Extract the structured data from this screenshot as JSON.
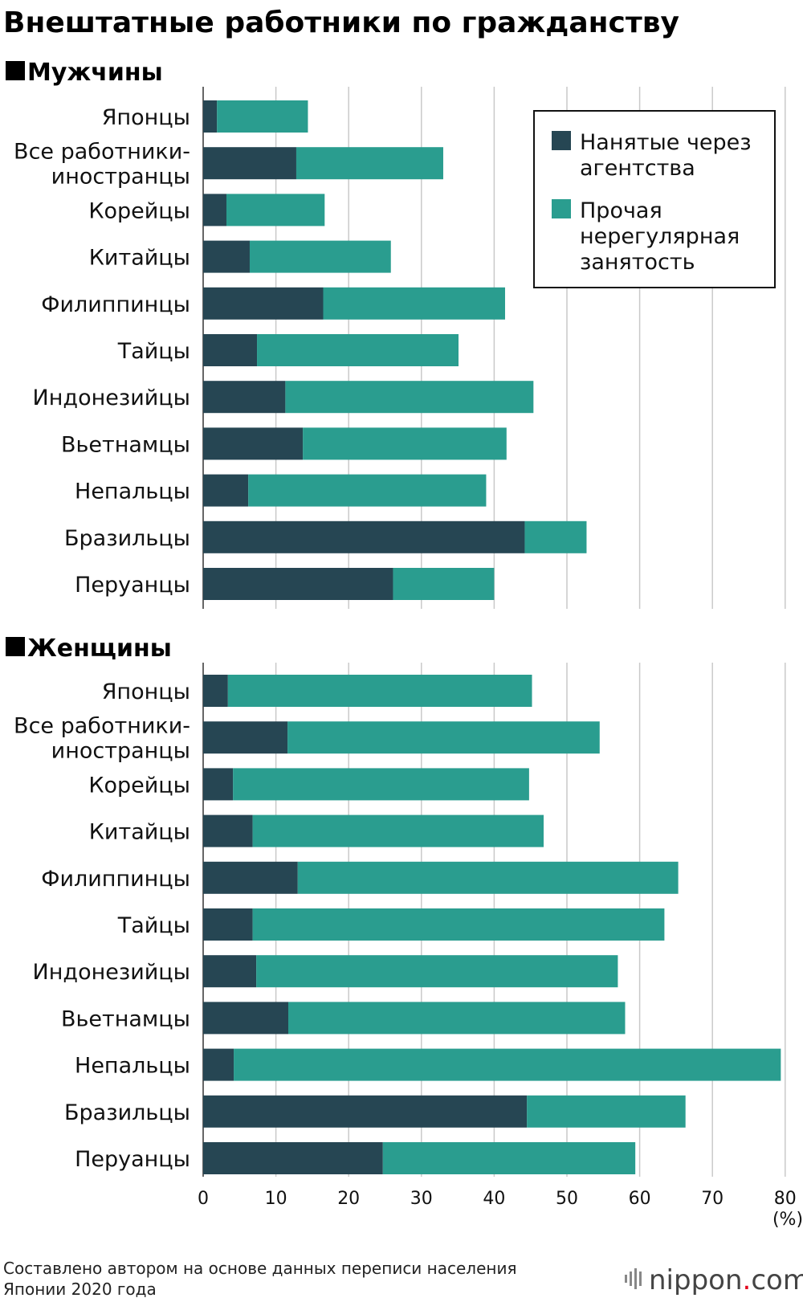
{
  "title": "Внештатные работники по гражданству",
  "colors": {
    "agency": "#264653",
    "other": "#2a9d8f"
  },
  "legend": {
    "agency_lines": [
      "Нанятые через",
      "агентства"
    ],
    "other_lines": [
      "Прочая",
      "нерегулярная",
      "занятость"
    ]
  },
  "axis": {
    "ticks": [
      0,
      10,
      20,
      30,
      40,
      50,
      60,
      70,
      80
    ],
    "unit": "(%)"
  },
  "source_lines": [
    "Составлено автором на основе данных переписи населения",
    "Японии 2020 года"
  ],
  "logo": {
    "text": "nippon",
    "dot": ".",
    "suffix": "com"
  },
  "chart_data": [
    {
      "type": "bar",
      "orientation": "horizontal",
      "stacked": true,
      "title": "Мужчины",
      "categories": [
        "Японцы",
        "Все работники-иностранцы",
        "Корейцы",
        "Китайцы",
        "Филиппинцы",
        "Тайцы",
        "Индонезийцы",
        "Вьетнамцы",
        "Непальцы",
        "Бразильцы",
        "Перуанцы"
      ],
      "category_lines": [
        [
          "Японцы"
        ],
        [
          "Все работники-",
          "иностранцы"
        ],
        [
          "Корейцы"
        ],
        [
          "Китайцы"
        ],
        [
          "Филиппинцы"
        ],
        [
          "Тайцы"
        ],
        [
          "Индонезийцы"
        ],
        [
          "Вьетнамцы"
        ],
        [
          "Непальцы"
        ],
        [
          "Бразильцы"
        ],
        [
          "Перуанцы"
        ]
      ],
      "series": [
        {
          "name": "Нанятые через агентства",
          "values": [
            1.9,
            12.8,
            3.2,
            6.4,
            16.5,
            7.4,
            11.3,
            13.7,
            6.2,
            44.2,
            26.1
          ]
        },
        {
          "name": "Прочая нерегулярная занятость",
          "values": [
            12.5,
            20.2,
            13.5,
            19.4,
            25.0,
            27.7,
            34.1,
            28.0,
            32.7,
            8.5,
            13.9
          ]
        }
      ],
      "xlim": [
        0,
        80
      ],
      "grid": true,
      "legend_position": "top-right"
    },
    {
      "type": "bar",
      "orientation": "horizontal",
      "stacked": true,
      "title": "Женщины",
      "categories": [
        "Японцы",
        "Все работники-иностранцы",
        "Корейцы",
        "Китайцы",
        "Филиппинцы",
        "Тайцы",
        "Индонезийцы",
        "Вьетнамцы",
        "Непальцы",
        "Бразильцы",
        "Перуанцы"
      ],
      "category_lines": [
        [
          "Японцы"
        ],
        [
          "Все работники-",
          "иностранцы"
        ],
        [
          "Корейцы"
        ],
        [
          "Китайцы"
        ],
        [
          "Филиппинцы"
        ],
        [
          "Тайцы"
        ],
        [
          "Индонезийцы"
        ],
        [
          "Вьетнамцы"
        ],
        [
          "Непальцы"
        ],
        [
          "Бразильцы"
        ],
        [
          "Перуанцы"
        ]
      ],
      "series": [
        {
          "name": "Нанятые через агентства",
          "values": [
            3.4,
            11.6,
            4.1,
            6.8,
            13.0,
            6.8,
            7.3,
            11.7,
            4.2,
            44.5,
            24.7
          ]
        },
        {
          "name": "Прочая нерегулярная занятость",
          "values": [
            41.8,
            42.9,
            40.7,
            40.0,
            52.3,
            56.6,
            49.7,
            46.3,
            75.2,
            21.8,
            34.7
          ]
        }
      ],
      "xlim": [
        0,
        80
      ],
      "grid": true
    }
  ]
}
